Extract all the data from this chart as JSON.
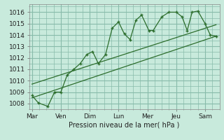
{
  "bg_color": "#c8eadc",
  "grid_color": "#88bbaa",
  "line_color": "#2d6e2d",
  "title": "Pression niveau de la mer( hPa )",
  "ylim": [
    1007.5,
    1016.7
  ],
  "yticks": [
    1008,
    1009,
    1010,
    1011,
    1012,
    1013,
    1014,
    1015,
    1016
  ],
  "xtick_labels": [
    "Mar",
    "Ven",
    "Dim",
    "Lun",
    "Mer",
    "Jeu",
    "Sam"
  ],
  "xtick_positions": [
    0,
    1,
    2,
    3,
    4,
    5,
    6
  ],
  "xlim": [
    -0.1,
    6.5
  ],
  "series1_x": [
    0.0,
    0.22,
    0.55,
    0.78,
    1.0,
    1.22,
    1.45,
    1.67,
    1.9,
    2.1,
    2.3,
    2.55,
    2.78,
    3.0,
    3.2,
    3.4,
    3.6,
    3.8,
    4.05,
    4.2,
    4.5,
    4.75,
    5.0,
    5.2,
    5.38,
    5.55,
    5.75,
    6.0,
    6.18,
    6.38
  ],
  "series1_y": [
    1008.7,
    1008.05,
    1007.75,
    1009.0,
    1009.0,
    1010.5,
    1011.0,
    1011.5,
    1012.3,
    1012.55,
    1011.5,
    1012.3,
    1014.6,
    1015.15,
    1014.1,
    1013.6,
    1015.3,
    1015.75,
    1014.4,
    1014.4,
    1015.6,
    1016.0,
    1016.0,
    1015.6,
    1014.4,
    1016.0,
    1016.1,
    1015.0,
    1014.0,
    1013.9
  ],
  "series2_x": [
    0.0,
    6.38
  ],
  "series2_y": [
    1008.5,
    1013.9
  ],
  "series3_x": [
    0.0,
    6.38
  ],
  "series3_y": [
    1009.7,
    1014.9
  ]
}
